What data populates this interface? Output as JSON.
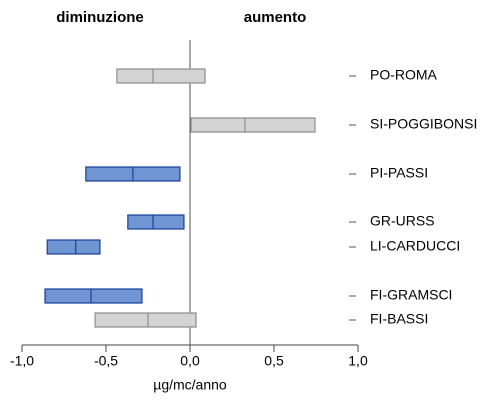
{
  "chart_data": {
    "type": "range_bar",
    "left_header": "diminuzione",
    "right_header": "aumento",
    "x_label": "µg/mc/anno",
    "categories": [
      "PO-ROMA",
      "SI-POGGIBONSI",
      "PI-PASSI",
      "GR-URSS",
      "LI-CARDUCCI",
      "FI-GRAMSCI",
      "FI-BASSI"
    ],
    "low": [
      -0.435,
      0.006,
      -0.62,
      -0.37,
      -0.85,
      -0.863,
      -0.565
    ],
    "median": [
      -0.22,
      0.327,
      -0.34,
      -0.22,
      -0.68,
      -0.59,
      -0.25
    ],
    "high": [
      0.089,
      0.744,
      -0.06,
      -0.036,
      -0.536,
      -0.286,
      0.036
    ],
    "colors": [
      "#d4d4d4",
      "#d4d4d4",
      "#6f96d2",
      "#6f96d2",
      "#6f96d2",
      "#6f96d2",
      "#d4d4d4"
    ],
    "edge_colors": [
      "#8c8c8c",
      "#8c8c8c",
      "#1c3c9a",
      "#1c3c9a",
      "#1c3c9a",
      "#1c3c9a",
      "#8c8c8c"
    ],
    "xlim": [
      -1,
      1
    ],
    "xticks": [
      {
        "value": -1,
        "label": "-1,0"
      },
      {
        "value": -0.5,
        "label": "-0,5"
      },
      {
        "value": 0,
        "label": "0,0"
      },
      {
        "value": 0.5,
        "label": "0,5"
      },
      {
        "value": 1,
        "label": "1,0"
      }
    ]
  }
}
